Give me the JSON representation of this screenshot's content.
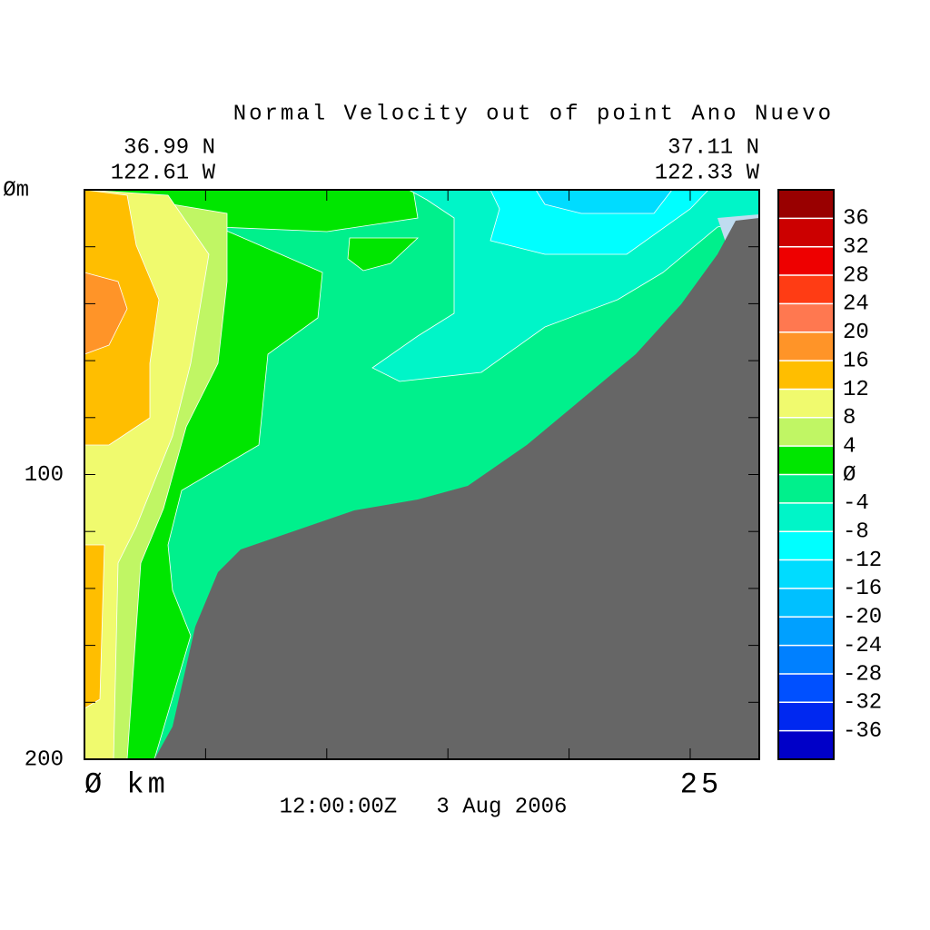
{
  "chart_data": {
    "type": "contour",
    "title": "Normal Velocity out of point Ano Nuevo",
    "left_lat": "36.99 N",
    "left_lon": "122.61 W",
    "right_lat": "37.11 N",
    "right_lon": "122.33 W",
    "time_label": "12:00:00Z   3 Aug 2006",
    "xlim": [
      0,
      27.85
    ],
    "xticks": [
      {
        "value": 0,
        "label": "Ø km"
      },
      {
        "value": 25,
        "label": "25"
      }
    ],
    "xminor_ticks": [
      5,
      10,
      15,
      20
    ],
    "ylim": [
      0,
      200
    ],
    "yticks": [
      {
        "value": 0,
        "label": "Øm"
      },
      {
        "value": 100,
        "label": "100"
      },
      {
        "value": 200,
        "label": "200"
      }
    ],
    "yminor_ticks": [
      20,
      40,
      60,
      80,
      120,
      140,
      160,
      180
    ],
    "levels": [
      -40,
      -36,
      -32,
      -28,
      -24,
      -20,
      -16,
      -12,
      -8,
      -4,
      0,
      4,
      8,
      12,
      16,
      20,
      24,
      28,
      32,
      36,
      40
    ],
    "colors": [
      "#0000c8",
      "#0028f0",
      "#0050ff",
      "#0080ff",
      "#00a0ff",
      "#00c0ff",
      "#00dcff",
      "#00ffff",
      "#00f5c8",
      "#00f08c",
      "#00e600",
      "#c0f664",
      "#f0fa6e",
      "#ffbe00",
      "#ff9428",
      "#ff7850",
      "#ff3c14",
      "#ee0000",
      "#cc0000",
      "#990000"
    ],
    "colorbar_ticks": [
      36,
      32,
      28,
      24,
      20,
      16,
      12,
      8,
      4,
      {
        "value": 0,
        "label": "Ø"
      },
      -4,
      -8,
      -12,
      -16,
      -20,
      -24,
      -28,
      -32,
      -36
    ]
  }
}
